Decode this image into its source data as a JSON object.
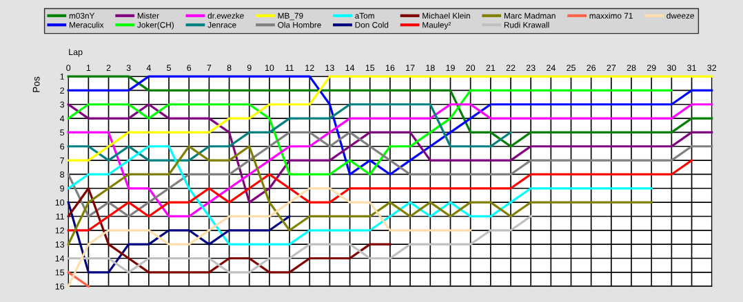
{
  "chart_data": {
    "type": "line",
    "xlabel": "Lap",
    "ylabel": "Pos",
    "x": [
      0,
      1,
      2,
      3,
      4,
      5,
      6,
      7,
      8,
      9,
      10,
      11,
      12,
      13,
      14,
      15,
      16,
      17,
      18,
      19,
      20,
      21,
      22,
      23,
      24,
      25,
      26,
      27,
      28,
      29,
      30,
      31,
      32
    ],
    "xlim": [
      0,
      32
    ],
    "xticks": [
      0,
      1,
      2,
      3,
      4,
      5,
      6,
      7,
      8,
      9,
      10,
      11,
      12,
      13,
      14,
      15,
      16,
      17,
      18,
      19,
      20,
      21,
      22,
      23,
      24,
      25,
      26,
      27,
      28,
      29,
      30,
      31,
      32
    ],
    "ylim": [
      16,
      1
    ],
    "yticks": [
      1,
      2,
      3,
      4,
      5,
      6,
      7,
      8,
      9,
      10,
      11,
      12,
      13,
      14,
      15,
      16
    ],
    "grid": true,
    "legend": "top",
    "marker": "none",
    "line_style": "solid",
    "series": [
      {
        "name": "m03nY",
        "color": "#008000",
        "values": [
          1,
          1,
          1,
          1,
          2,
          2,
          2,
          2,
          2,
          2,
          2,
          2,
          2,
          2,
          2,
          2,
          2,
          2,
          2,
          2,
          5,
          5,
          6,
          5,
          5,
          5,
          5,
          5,
          5,
          5,
          5,
          4,
          4
        ]
      },
      {
        "name": "Meraculix",
        "color": "#0000ff",
        "values": [
          2,
          2,
          2,
          2,
          1,
          1,
          1,
          1,
          1,
          1,
          1,
          1,
          1,
          3,
          8,
          7,
          8,
          7,
          6,
          5,
          4,
          3,
          3,
          3,
          3,
          3,
          3,
          3,
          3,
          3,
          3,
          2,
          2
        ]
      },
      {
        "name": "Mister",
        "color": "#800080",
        "values": [
          3,
          4,
          4,
          4,
          3,
          4,
          4,
          4,
          5,
          10,
          9,
          7,
          7,
          7,
          6,
          5,
          5,
          5,
          7,
          7,
          7,
          7,
          7,
          6,
          6,
          6,
          6,
          6,
          6,
          6,
          6,
          5,
          5
        ]
      },
      {
        "name": "Joker(CH)",
        "color": "#00ff00",
        "values": [
          4,
          3,
          3,
          3,
          4,
          3,
          3,
          3,
          3,
          3,
          4,
          8,
          8,
          8,
          7,
          8,
          6,
          6,
          5,
          4,
          2,
          2,
          2,
          2,
          2,
          2,
          2,
          2,
          2,
          2,
          2,
          null,
          null
        ]
      },
      {
        "name": "dr.ewezke",
        "color": "#ff00ff",
        "values": [
          5,
          5,
          5,
          9,
          9,
          11,
          11,
          10,
          9,
          8,
          7,
          6,
          6,
          5,
          4,
          4,
          4,
          4,
          4,
          3,
          3,
          4,
          4,
          4,
          4,
          4,
          4,
          4,
          4,
          4,
          4,
          3,
          3
        ]
      },
      {
        "name": "Jenrace",
        "color": "#008080",
        "values": [
          6,
          6,
          7,
          6,
          7,
          7,
          7,
          6,
          6,
          5,
          5,
          4,
          4,
          4,
          3,
          3,
          3,
          3,
          3,
          6,
          6,
          6,
          5,
          null,
          null,
          null,
          null,
          null,
          null,
          null,
          null,
          null,
          null
        ]
      },
      {
        "name": "MB_79",
        "color": "#ffff00",
        "values": [
          7,
          7,
          6,
          5,
          5,
          5,
          5,
          5,
          4,
          4,
          3,
          3,
          3,
          1,
          1,
          1,
          1,
          1,
          1,
          1,
          1,
          1,
          1,
          1,
          1,
          1,
          1,
          1,
          1,
          1,
          1,
          1,
          1
        ]
      },
      {
        "name": "Ola Hombre",
        "color": "#808080",
        "values": [
          8,
          11,
          10,
          11,
          10,
          9,
          8,
          8,
          8,
          7,
          6,
          5,
          5,
          6,
          5,
          6,
          7,
          8,
          8,
          8,
          8,
          8,
          8,
          7,
          7,
          7,
          7,
          7,
          7,
          7,
          7,
          6,
          6
        ]
      },
      {
        "name": "aTom",
        "color": "#00ffff",
        "values": [
          9,
          8,
          8,
          7,
          6,
          6,
          9,
          11,
          13,
          13,
          13,
          13,
          12,
          12,
          12,
          12,
          11,
          10,
          11,
          10,
          11,
          11,
          10,
          9,
          9,
          9,
          9,
          9,
          9,
          9,
          null,
          null,
          null
        ]
      },
      {
        "name": "Don Cold",
        "color": "#000080",
        "values": [
          10,
          15,
          15,
          13,
          13,
          12,
          12,
          13,
          12,
          12,
          12,
          11,
          null,
          null,
          null,
          null,
          null,
          null,
          null,
          null,
          null,
          null,
          null,
          null,
          null,
          null,
          null,
          null,
          null,
          null,
          null,
          null,
          null
        ]
      },
      {
        "name": "Michael Klein",
        "color": "#800000",
        "values": [
          11,
          9,
          13,
          14,
          15,
          15,
          15,
          15,
          14,
          14,
          15,
          15,
          14,
          14,
          14,
          13,
          13,
          null,
          null,
          null,
          null,
          null,
          null,
          null,
          null,
          null,
          null,
          null,
          null,
          null,
          null,
          null,
          null
        ]
      },
      {
        "name": "Mauley²",
        "color": "#ff0000",
        "values": [
          12,
          12,
          11,
          10,
          11,
          10,
          10,
          9,
          10,
          9,
          8,
          9,
          10,
          10,
          9,
          9,
          9,
          9,
          9,
          9,
          9,
          9,
          9,
          8,
          8,
          8,
          8,
          8,
          8,
          8,
          8,
          7,
          null
        ]
      },
      {
        "name": "Marc Madman",
        "color": "#808000",
        "values": [
          13,
          10,
          9,
          8,
          8,
          8,
          6,
          7,
          7,
          6,
          10,
          12,
          11,
          11,
          11,
          11,
          10,
          11,
          10,
          11,
          10,
          10,
          11,
          10,
          10,
          10,
          10,
          10,
          10,
          10,
          null,
          null,
          null
        ]
      },
      {
        "name": "Rudi Krawall",
        "color": "#c0c0c0",
        "values": [
          14,
          14,
          14,
          15,
          14,
          14,
          14,
          14,
          15,
          15,
          14,
          14,
          13,
          13,
          13,
          14,
          14,
          13,
          13,
          13,
          13,
          12,
          12,
          11,
          null,
          null,
          null,
          null,
          null,
          null,
          null,
          null,
          null
        ]
      },
      {
        "name": "maxximo 71",
        "color": "#ff6347",
        "values": [
          15,
          16,
          null,
          null,
          null,
          null,
          null,
          null,
          null,
          null,
          null,
          null,
          null,
          null,
          null,
          null,
          null,
          null,
          null,
          null,
          null,
          null,
          null,
          null,
          null,
          null,
          null,
          null,
          null,
          null,
          null,
          null,
          null
        ]
      },
      {
        "name": "dweeze",
        "color": "#ffdead",
        "values": [
          16,
          13,
          12,
          12,
          12,
          13,
          13,
          12,
          11,
          11,
          11,
          10,
          9,
          9,
          10,
          10,
          12,
          12,
          12,
          12,
          12,
          null,
          null,
          null,
          null,
          null,
          null,
          null,
          null,
          null,
          null,
          null,
          null
        ]
      }
    ]
  }
}
